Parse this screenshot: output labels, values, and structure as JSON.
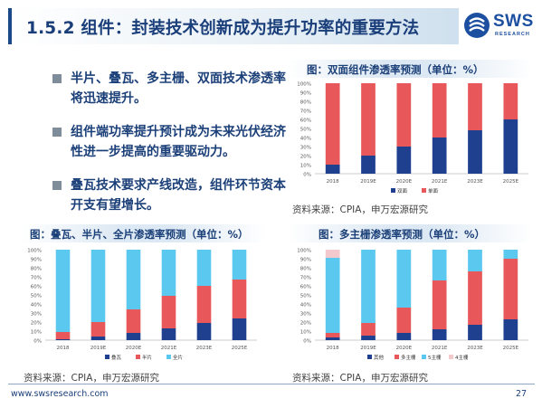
{
  "title": "1.5.2 组件：封装技术创新成为提升功率的重要方法",
  "logo": {
    "brand": "SWS",
    "sub": "RESEARCH"
  },
  "bullets": [
    "半片、叠瓦、多主栅、双面技术渗透率将迅速提升。",
    "组件端功率提升预计成为未来光伏经济性进一步提高的重要驱动力。",
    "叠瓦技术要求产线改造，组件环节资本开支有望增长。"
  ],
  "footer": {
    "url": "www.swsresearch.com",
    "page": "27"
  },
  "chart_data": [
    {
      "type": "bar",
      "stacked": "percent",
      "title": "图：双面组件渗透率预测（单位：%）",
      "source": "资料来源：CPIA，申万宏源研究",
      "categories": [
        "2018",
        "2019E",
        "2020E",
        "2021E",
        "2023E",
        "2025E"
      ],
      "ylim": [
        0,
        100
      ],
      "yticks": [
        "0%",
        "10%",
        "20%",
        "30%",
        "40%",
        "50%",
        "60%",
        "70%",
        "80%",
        "90%",
        "100%"
      ],
      "legend_position": "bottom",
      "series": [
        {
          "name": "双面",
          "color": "#1f3f8f",
          "values": [
            10,
            20,
            30,
            40,
            48,
            60
          ]
        },
        {
          "name": "单面",
          "color": "#e8585a",
          "values": [
            90,
            80,
            70,
            60,
            52,
            40
          ]
        }
      ]
    },
    {
      "type": "bar",
      "stacked": "percent",
      "title": "图：叠瓦、半片、全片渗透率预测（单位：%）",
      "source": "资料来源：CPIA，申万宏源研究",
      "categories": [
        "2018",
        "2019E",
        "2020E",
        "2021E",
        "2023E",
        "2025E"
      ],
      "ylim": [
        0,
        100
      ],
      "yticks": [
        "0%",
        "10%",
        "20%",
        "30%",
        "40%",
        "50%",
        "60%",
        "70%",
        "80%",
        "90%",
        "100%"
      ],
      "legend_position": "bottom",
      "series": [
        {
          "name": "叠瓦",
          "color": "#1f3f8f",
          "values": [
            1,
            4,
            8,
            13,
            19,
            24
          ]
        },
        {
          "name": "半片",
          "color": "#e8585a",
          "values": [
            8,
            16,
            26,
            36,
            41,
            43
          ]
        },
        {
          "name": "全片",
          "color": "#5bc8f0",
          "values": [
            91,
            80,
            66,
            51,
            40,
            33
          ]
        }
      ]
    },
    {
      "type": "bar",
      "stacked": "percent",
      "title": "图：多主栅渗透率预测（单位：%）",
      "source": "资料来源：CPIA，申万宏源研究",
      "categories": [
        "2018",
        "2019E",
        "2020E",
        "2021E",
        "2023E",
        "2025E"
      ],
      "ylim": [
        0,
        100
      ],
      "yticks": [
        "0%",
        "10%",
        "20%",
        "30%",
        "40%",
        "50%",
        "60%",
        "70%",
        "80%",
        "90%",
        "100%"
      ],
      "legend_position": "bottom",
      "series": [
        {
          "name": "其他",
          "color": "#1f3f8f",
          "values": [
            3,
            5,
            8,
            12,
            17,
            23
          ]
        },
        {
          "name": "多主栅",
          "color": "#e8585a",
          "values": [
            5,
            14,
            28,
            54,
            59,
            67
          ]
        },
        {
          "name": "5主栅",
          "color": "#5bc8f0",
          "values": [
            83,
            81,
            64,
            34,
            24,
            10
          ]
        },
        {
          "name": "4主栅",
          "color": "#f4c9cd",
          "values": [
            9,
            0,
            0,
            0,
            0,
            0
          ]
        }
      ]
    }
  ]
}
